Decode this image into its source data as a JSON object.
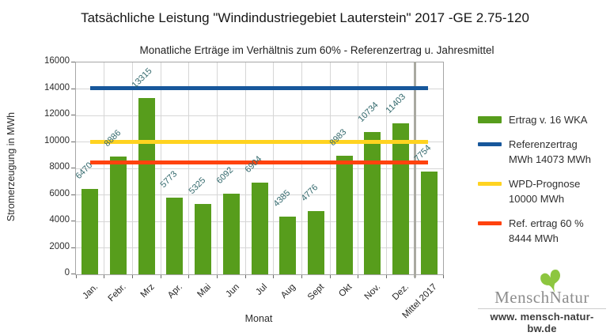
{
  "chart_data": {
    "type": "bar",
    "title": "Tatsächliche Leistung \"Windindustriegebiet Lauterstein\" 2017 -GE 2.75-120",
    "subtitle": "Monatliche Erträge im Verhältnis zum 60% - Referenzertrag u. Jahresmittel",
    "xlabel": "Monat",
    "ylabel": "Stromerzeugung in MWh",
    "ylim": [
      0,
      16000
    ],
    "yticks": [
      0,
      2000,
      4000,
      6000,
      8000,
      10000,
      12000,
      14000,
      16000
    ],
    "grid": true,
    "legend_position": "right",
    "categories": [
      "Jan.",
      "Febr.",
      "Mrz",
      "Apr.",
      "Mai",
      "Jun",
      "Jul",
      "Aug",
      "Sept",
      "Okt",
      "Nov.",
      "Dez.",
      "Mittel 2017"
    ],
    "values": [
      6470,
      8886,
      13315,
      5773,
      5325,
      6092,
      6904,
      4385,
      4776,
      8983,
      10734,
      11403,
      7754
    ],
    "bar_color": "#579d1c",
    "value_label_color": "#33696d",
    "separator_boundary_index": 12,
    "separator_color": "#a9a9a1",
    "reference_lines": [
      {
        "label": "Referenzertrag",
        "value": 14073,
        "color": "#17579b"
      },
      {
        "label": "WPD-Prognose",
        "value": 10000,
        "color": "#ffd320"
      },
      {
        "label": "Ref. ertrag 60 %",
        "value": 8444,
        "color": "#ff420e"
      }
    ],
    "legend_items": [
      {
        "swatch": "bar",
        "color": "#579d1c",
        "label": "Ertrag v. 16 WKA"
      },
      {
        "swatch": "line",
        "color": "#17579b",
        "label": "Referenzertrag\nMWh 14073 MWh"
      },
      {
        "swatch": "line",
        "color": "#ffd320",
        "label": "WPD-Prognose\n10000 MWh"
      },
      {
        "swatch": "line",
        "color": "#ff420e",
        "label": "Ref. ertrag 60 %\n8444 MWh"
      }
    ]
  },
  "logo": {
    "name": "MenschNatur",
    "url": "www. mensch-natur-bw.de",
    "leaf_color": "#8dc63f"
  }
}
